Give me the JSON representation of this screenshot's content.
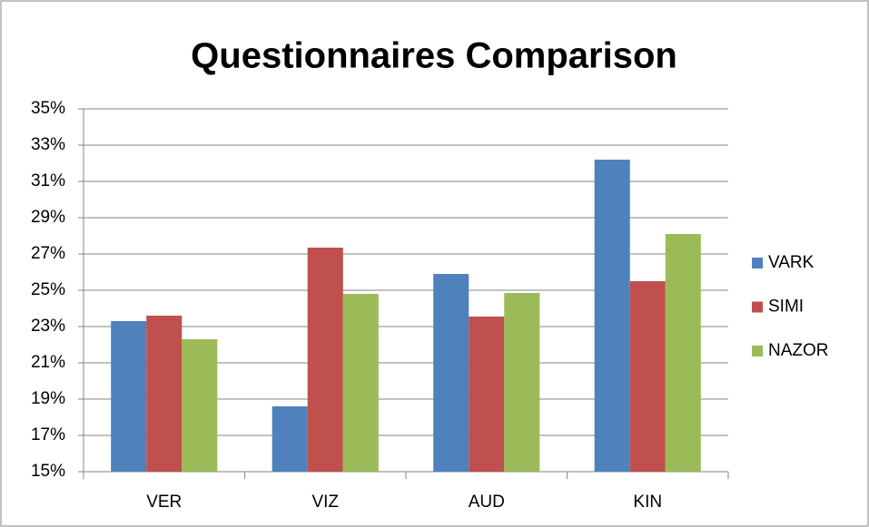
{
  "chart_data": {
    "type": "bar",
    "title": "Questionnaires Comparison",
    "categories": [
      "VER",
      "VIZ",
      "AUD",
      "KIN"
    ],
    "series": [
      {
        "name": "VARK",
        "color": "#4f81bd",
        "values": [
          23.3,
          18.6,
          25.9,
          32.2
        ]
      },
      {
        "name": "SIMI",
        "color": "#c0504d",
        "values": [
          23.6,
          27.35,
          23.55,
          25.5
        ]
      },
      {
        "name": "NAZOR",
        "color": "#9bbb59",
        "values": [
          22.3,
          24.8,
          24.85,
          28.1
        ]
      }
    ],
    "ylim": [
      15,
      35
    ],
    "yticks": [
      {
        "value": 15,
        "label": "15%"
      },
      {
        "value": 17,
        "label": "17%"
      },
      {
        "value": 19,
        "label": "19%"
      },
      {
        "value": 21,
        "label": "21%"
      },
      {
        "value": 23,
        "label": "23%"
      },
      {
        "value": 25,
        "label": "25%"
      },
      {
        "value": 27,
        "label": "27%"
      },
      {
        "value": 29,
        "label": "29%"
      },
      {
        "value": 31,
        "label": "31%"
      },
      {
        "value": 33,
        "label": "33%"
      },
      {
        "value": 35,
        "label": "35%"
      }
    ],
    "grid": true,
    "legend": "right"
  }
}
